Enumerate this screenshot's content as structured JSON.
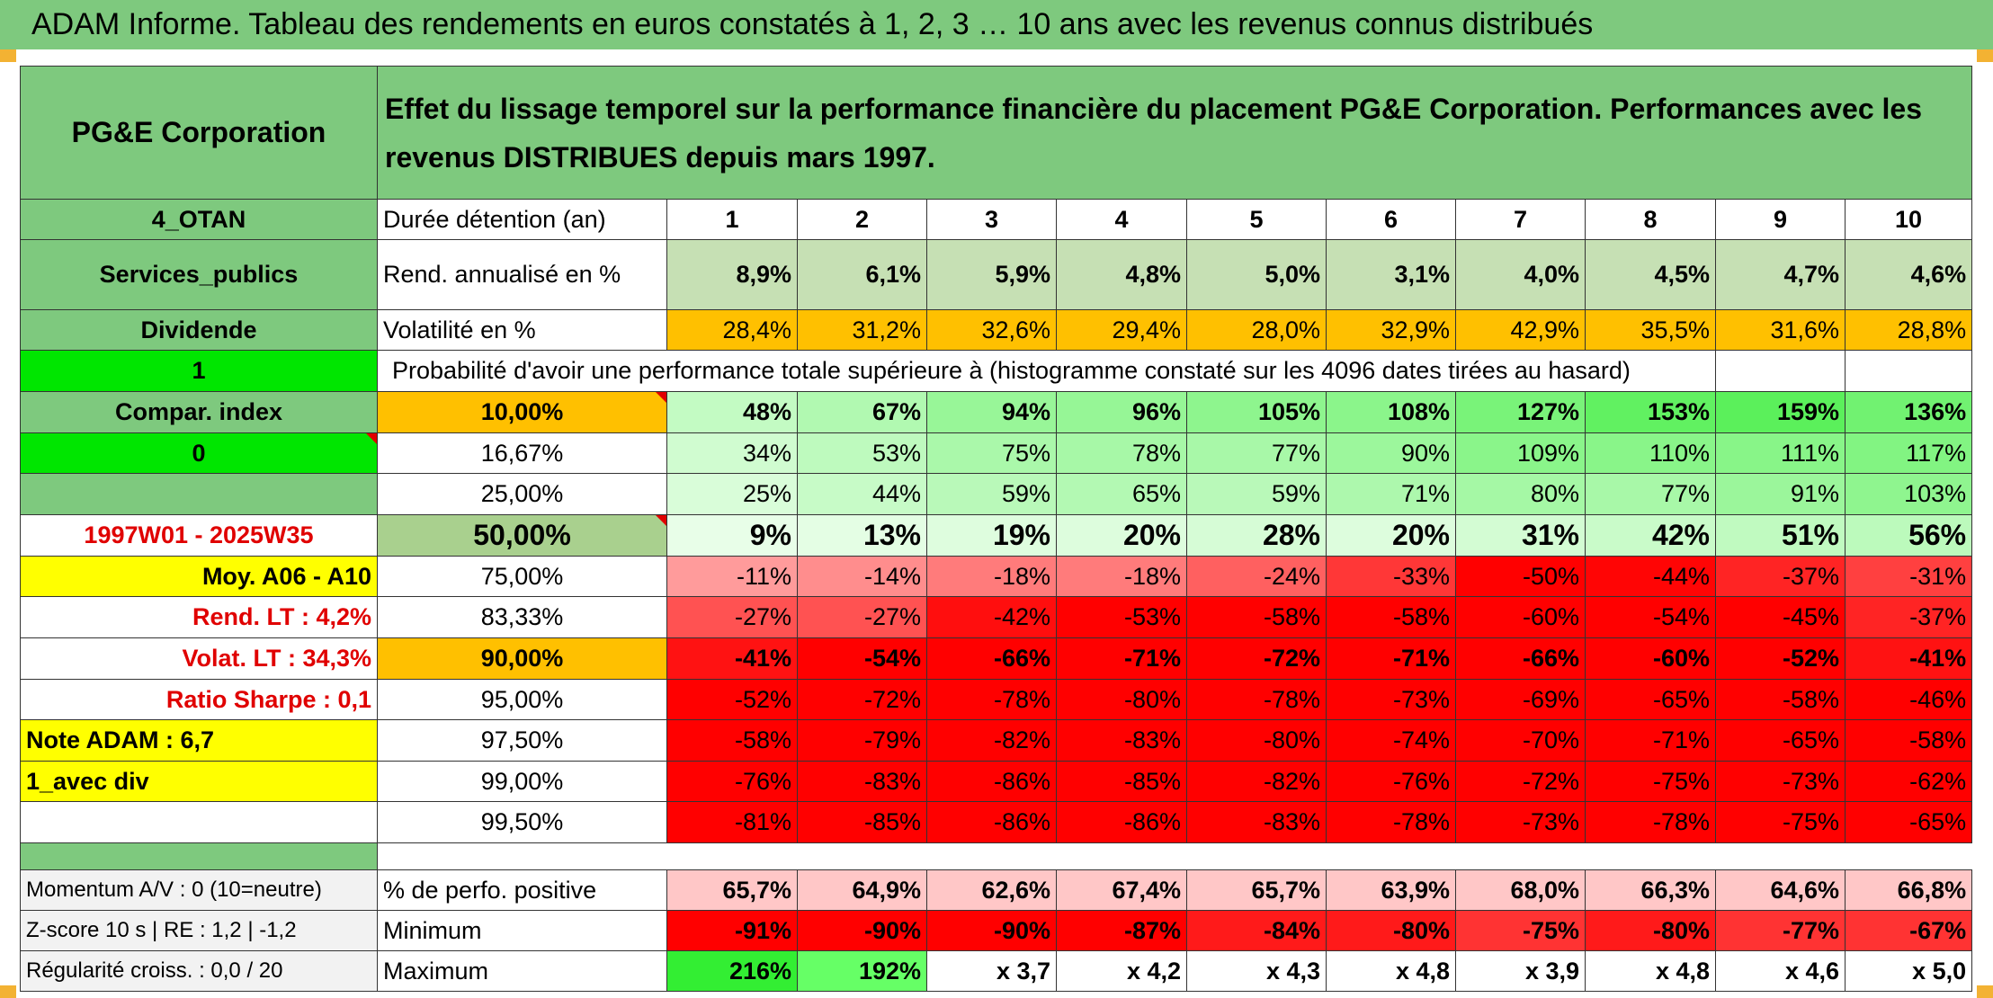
{
  "title": "ADAM Informe. Tableau des rendements en euros constatés à 1, 2, 3 … 10 ans avec les revenus connus distribués",
  "left": {
    "company": "PG&E Corporation",
    "code": "4_OTAN",
    "sector": "Services_publics",
    "dividende_label": "Dividende",
    "dividende_value": "1",
    "compar_label": "Compar. index",
    "compar_value": "0",
    "period": "1997W01 - 2025W35",
    "moy": "Moy. A06 - A10",
    "rend_lt": "Rend. LT :   4,2%",
    "volat_lt": "Volat. LT :   34,3%",
    "sharpe": "Ratio Sharpe :    0,1",
    "note": "Note ADAM : 6,7",
    "avec_div": "1_avec div",
    "momentum": "Momentum A/V : 0 (10=neutre)",
    "zscore": "Z-score 10 s | RE : 1,2 | -1,2",
    "regularite": "Régularité croiss. : 0,0 / 20"
  },
  "header_text": "Effet du lissage temporel sur la performance financière du placement PG&E Corporation. Performances avec les revenus DISTRIBUES depuis mars 1997.",
  "durations_label": "Durée détention (an)",
  "durations": [
    "1",
    "2",
    "3",
    "4",
    "5",
    "6",
    "7",
    "8",
    "9",
    "10"
  ],
  "rend_label": "Rend. annualisé en %",
  "rend": [
    "8,9%",
    "6,1%",
    "5,9%",
    "4,8%",
    "5,0%",
    "3,1%",
    "4,0%",
    "4,5%",
    "4,7%",
    "4,6%"
  ],
  "vol_label": "Volatilité en %",
  "vol": [
    "28,4%",
    "31,2%",
    "32,6%",
    "29,4%",
    "28,0%",
    "32,9%",
    "42,9%",
    "35,5%",
    "31,6%",
    "28,8%"
  ],
  "prob_label": "Probabilité d'avoir une performance totale supérieure à (histogramme constaté sur les 4096 dates tirées au hasard)",
  "prob_rows": [
    {
      "p": "10,00%",
      "v": [
        "48%",
        "67%",
        "94%",
        "96%",
        "105%",
        "108%",
        "127%",
        "153%",
        "159%",
        "136%"
      ]
    },
    {
      "p": "16,67%",
      "v": [
        "34%",
        "53%",
        "75%",
        "78%",
        "77%",
        "90%",
        "109%",
        "110%",
        "111%",
        "117%"
      ]
    },
    {
      "p": "25,00%",
      "v": [
        "25%",
        "44%",
        "59%",
        "65%",
        "59%",
        "71%",
        "80%",
        "77%",
        "91%",
        "103%"
      ]
    },
    {
      "p": "50,00%",
      "v": [
        "9%",
        "13%",
        "19%",
        "20%",
        "28%",
        "20%",
        "31%",
        "42%",
        "51%",
        "56%"
      ]
    },
    {
      "p": "75,00%",
      "v": [
        "-11%",
        "-14%",
        "-18%",
        "-18%",
        "-24%",
        "-33%",
        "-50%",
        "-44%",
        "-37%",
        "-31%"
      ]
    },
    {
      "p": "83,33%",
      "v": [
        "-27%",
        "-27%",
        "-42%",
        "-53%",
        "-58%",
        "-58%",
        "-60%",
        "-54%",
        "-45%",
        "-37%"
      ]
    },
    {
      "p": "90,00%",
      "v": [
        "-41%",
        "-54%",
        "-66%",
        "-71%",
        "-72%",
        "-71%",
        "-66%",
        "-60%",
        "-52%",
        "-41%"
      ]
    },
    {
      "p": "95,00%",
      "v": [
        "-52%",
        "-72%",
        "-78%",
        "-80%",
        "-78%",
        "-73%",
        "-69%",
        "-65%",
        "-58%",
        "-46%"
      ]
    },
    {
      "p": "97,50%",
      "v": [
        "-58%",
        "-79%",
        "-82%",
        "-83%",
        "-80%",
        "-74%",
        "-70%",
        "-71%",
        "-65%",
        "-58%"
      ]
    },
    {
      "p": "99,00%",
      "v": [
        "-76%",
        "-83%",
        "-86%",
        "-85%",
        "-82%",
        "-76%",
        "-72%",
        "-75%",
        "-73%",
        "-62%"
      ]
    },
    {
      "p": "99,50%",
      "v": [
        "-81%",
        "-85%",
        "-86%",
        "-86%",
        "-83%",
        "-78%",
        "-73%",
        "-78%",
        "-75%",
        "-65%"
      ]
    }
  ],
  "pos_label": "% de perfo. positive",
  "pos": [
    "65,7%",
    "64,9%",
    "62,6%",
    "67,4%",
    "65,7%",
    "63,9%",
    "68,0%",
    "66,3%",
    "64,6%",
    "66,8%"
  ],
  "min_label": "Minimum",
  "min": [
    "-91%",
    "-90%",
    "-90%",
    "-87%",
    "-84%",
    "-80%",
    "-75%",
    "-80%",
    "-77%",
    "-67%"
  ],
  "max_label": "Maximum",
  "max": [
    "216%",
    "192%",
    "x 3,7",
    "x 4,2",
    "x 4,3",
    "x 4,8",
    "x 3,9",
    "x 4,8",
    "x 4,6",
    "x 5,0"
  ],
  "colors": {
    "green": "#7ec97e",
    "bright_green": "#00e600",
    "yellow": "#ffff00",
    "orange": "#ffc000",
    "red": "#ff0000"
  }
}
